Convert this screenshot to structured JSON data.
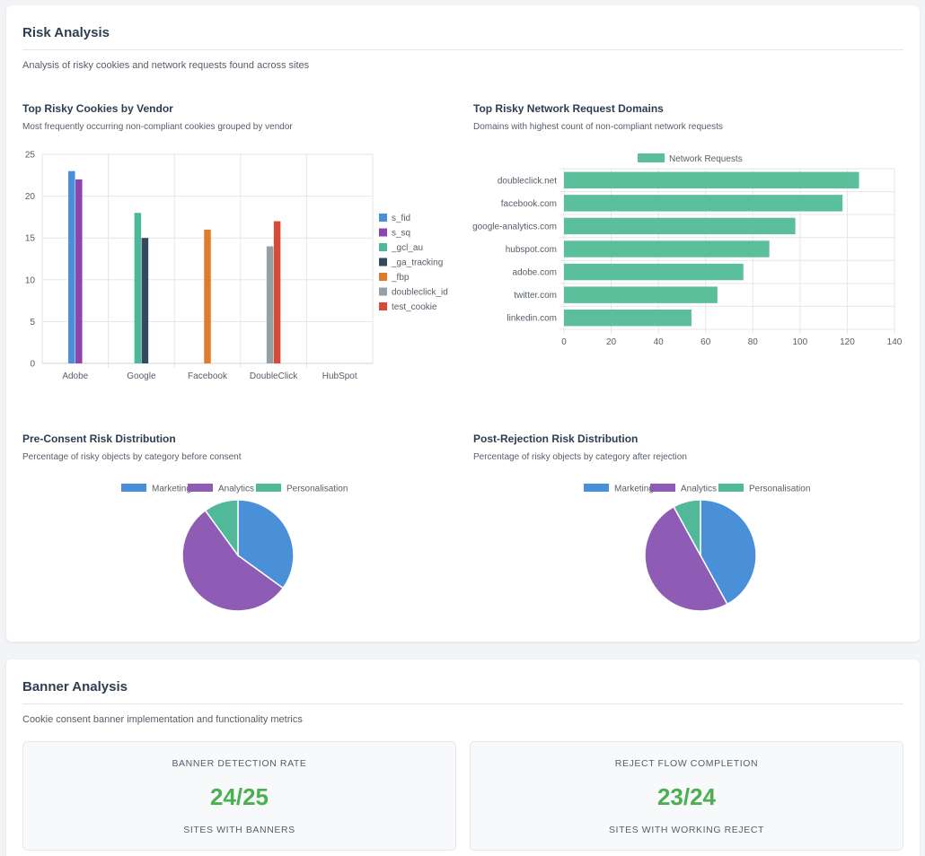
{
  "risk": {
    "title": "Risk Analysis",
    "description": "Analysis of risky cookies and network requests found across sites",
    "cookies_panel": {
      "title": "Top Risky Cookies by Vendor",
      "description": "Most frequently occurring non-compliant cookies grouped by vendor"
    },
    "network_panel": {
      "title": "Top Risky Network Request Domains",
      "description": "Domains with highest count of non-compliant network requests"
    },
    "pre_panel": {
      "title": "Pre-Consent Risk Distribution",
      "description": "Percentage of risky objects by category before consent"
    },
    "post_panel": {
      "title": "Post-Rejection Risk Distribution",
      "description": "Percentage of risky objects by category after rejection"
    }
  },
  "banner": {
    "title": "Banner Analysis",
    "description": "Cookie consent banner implementation and functionality metrics",
    "metrics": [
      {
        "label": "BANNER DETECTION RATE",
        "value": "24/25",
        "sublabel": "SITES WITH BANNERS"
      },
      {
        "label": "REJECT FLOW COMPLETION",
        "value": "23/24",
        "sublabel": "SITES WITH WORKING REJECT"
      }
    ]
  },
  "chart_data": [
    {
      "type": "bar",
      "categories": [
        "Adobe",
        "Google",
        "Facebook",
        "DoubleClick",
        "HubSpot"
      ],
      "series": [
        {
          "name": "s_fid",
          "values": [
            23,
            0,
            0,
            0,
            0
          ],
          "color": "#4a90d9"
        },
        {
          "name": "s_sq",
          "values": [
            22,
            0,
            0,
            0,
            0
          ],
          "color": "#8e44ad"
        },
        {
          "name": "_gcl_au",
          "values": [
            0,
            18,
            0,
            0,
            0
          ],
          "color": "#4cb89a"
        },
        {
          "name": "_ga_tracking",
          "values": [
            0,
            15,
            0,
            0,
            0
          ],
          "color": "#34495e"
        },
        {
          "name": "_fbp",
          "values": [
            0,
            0,
            16,
            0,
            0
          ],
          "color": "#e07b2c"
        },
        {
          "name": "doubleclick_id",
          "values": [
            0,
            0,
            0,
            14,
            0
          ],
          "color": "#95a0a6"
        },
        {
          "name": "test_cookie",
          "values": [
            0,
            0,
            0,
            17,
            0
          ],
          "color": "#d64a3a"
        }
      ],
      "yticks": [
        0,
        5,
        10,
        15,
        20,
        25
      ],
      "ylim": [
        0,
        25
      ],
      "legend": "right"
    },
    {
      "type": "bar",
      "orientation": "horizontal",
      "categories": [
        "doubleclick.net",
        "facebook.com",
        "google-analytics.com",
        "hubspot.com",
        "adobe.com",
        "twitter.com",
        "linkedin.com"
      ],
      "series": [
        {
          "name": "Network Requests",
          "values": [
            125,
            118,
            98,
            87,
            76,
            65,
            54
          ],
          "color": "#5bbf9c"
        }
      ],
      "xticks": [
        0,
        20,
        40,
        60,
        80,
        100,
        120,
        140
      ],
      "xlim": [
        0,
        140
      ],
      "legend": "top"
    },
    {
      "type": "pie",
      "labels": [
        "Marketing",
        "Analytics",
        "Personalisation"
      ],
      "values": [
        35,
        55,
        10
      ],
      "colors": [
        "#4a90d9",
        "#8e5bb5",
        "#52b89a"
      ],
      "legend": "top"
    },
    {
      "type": "pie",
      "labels": [
        "Marketing",
        "Analytics",
        "Personalisation"
      ],
      "values": [
        42,
        50,
        8
      ],
      "colors": [
        "#4a90d9",
        "#8e5bb5",
        "#52b89a"
      ],
      "legend": "top"
    }
  ]
}
